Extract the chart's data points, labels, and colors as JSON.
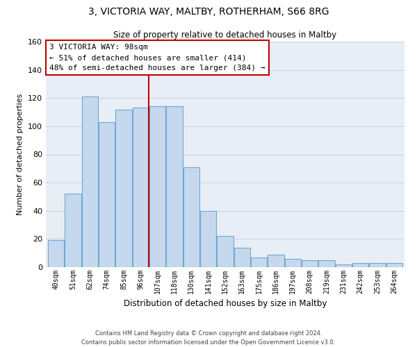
{
  "title": "3, VICTORIA WAY, MALTBY, ROTHERHAM, S66 8RG",
  "subtitle": "Size of property relative to detached houses in Maltby",
  "xlabel": "Distribution of detached houses by size in Maltby",
  "ylabel": "Number of detached properties",
  "categories": [
    "40sqm",
    "51sqm",
    "62sqm",
    "74sqm",
    "85sqm",
    "96sqm",
    "107sqm",
    "118sqm",
    "130sqm",
    "141sqm",
    "152sqm",
    "163sqm",
    "175sqm",
    "186sqm",
    "197sqm",
    "208sqm",
    "219sqm",
    "231sqm",
    "242sqm",
    "253sqm",
    "264sqm"
  ],
  "values": [
    19,
    52,
    121,
    103,
    112,
    113,
    114,
    114,
    71,
    40,
    22,
    14,
    7,
    9,
    6,
    5,
    5,
    2,
    3,
    3,
    3
  ],
  "bar_color": "#c5d8ee",
  "bar_edge_color": "#6fa8d0",
  "highlight_line_color": "#c00000",
  "ylim": [
    0,
    160
  ],
  "yticks": [
    0,
    20,
    40,
    60,
    80,
    100,
    120,
    140,
    160
  ],
  "annotation_title": "3 VICTORIA WAY: 98sqm",
  "annotation_line1": "← 51% of detached houses are smaller (414)",
  "annotation_line2": "48% of semi-detached houses are larger (384) →",
  "annotation_box_color": "#ffffff",
  "annotation_box_edge_color": "#c00000",
  "footer_line1": "Contains HM Land Registry data © Crown copyright and database right 2024.",
  "footer_line2": "Contains public sector information licensed under the Open Government Licence v3.0.",
  "background_color": "#ffffff",
  "plot_bg_color": "#e8eef5",
  "grid_color": "#c8d4e4"
}
